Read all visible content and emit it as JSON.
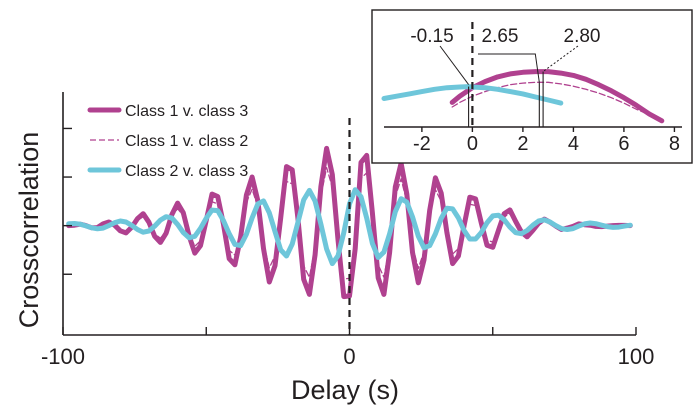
{
  "chart_data": [
    {
      "type": "line",
      "xlabel": "Delay (s)",
      "ylabel": "Crosscorrelation",
      "xlim": [
        -100,
        100
      ],
      "ylim": [
        -0.45,
        0.55
      ],
      "x_tick_labels": [
        "-100",
        "0",
        "100"
      ],
      "x_tick_values": [
        -100,
        0,
        100
      ],
      "x_minor_ticks": [
        -50,
        50
      ],
      "y_tick_values": [
        -0.2,
        0,
        0.2,
        0.4
      ],
      "zero_delay_marker": 0,
      "legend_position": "top-left",
      "series": [
        {
          "name": "Class 1 v. class 3",
          "color": "#b0418f",
          "style": "solid-thick",
          "x": [
            -98,
            -96,
            -94,
            -92,
            -90,
            -88,
            -86,
            -84,
            -82,
            -80,
            -78,
            -76,
            -74,
            -72,
            -70,
            -68,
            -66,
            -64,
            -62,
            -60,
            -58,
            -56,
            -54,
            -52,
            -50,
            -48,
            -46,
            -44,
            -42,
            -40,
            -38,
            -36,
            -34,
            -32,
            -30,
            -28,
            -26,
            -24,
            -22,
            -20,
            -18,
            -16,
            -14,
            -12,
            -10,
            -8,
            -6,
            -4,
            -2,
            0,
            2,
            4,
            6,
            8,
            10,
            12,
            14,
            16,
            18,
            20,
            22,
            24,
            26,
            28,
            30,
            32,
            34,
            36,
            38,
            40,
            42,
            44,
            46,
            48,
            50,
            52,
            54,
            56,
            58,
            60,
            62,
            64,
            66,
            68,
            70,
            72,
            74,
            76,
            78,
            80,
            82,
            84,
            86,
            88,
            90,
            92,
            94,
            96,
            98
          ],
          "y": [
            0.0,
            0.002,
            0.006,
            0.0,
            -0.009,
            -0.008,
            0.007,
            0.015,
            0.002,
            -0.021,
            -0.03,
            -0.006,
            0.029,
            0.049,
            0.014,
            -0.044,
            -0.069,
            -0.031,
            0.046,
            0.093,
            0.053,
            -0.042,
            -0.113,
            -0.082,
            0.023,
            0.13,
            0.12,
            0.007,
            -0.136,
            -0.161,
            -0.048,
            0.126,
            0.2,
            0.103,
            -0.094,
            -0.232,
            -0.165,
            0.032,
            0.243,
            0.23,
            0.031,
            -0.221,
            -0.283,
            -0.119,
            0.161,
            0.318,
            0.211,
            -0.058,
            -0.292,
            -0.289,
            -0.095,
            0.26,
            0.289,
            0.052,
            -0.215,
            -0.283,
            -0.111,
            0.159,
            0.257,
            0.131,
            -0.11,
            -0.235,
            -0.141,
            0.063,
            0.197,
            0.134,
            -0.028,
            -0.156,
            -0.125,
            0.001,
            0.117,
            0.11,
            0.011,
            -0.081,
            -0.089,
            -0.019,
            0.049,
            0.065,
            0.017,
            -0.026,
            -0.046,
            -0.019,
            0.01,
            0.027,
            0.014,
            -0.002,
            -0.016,
            -0.01,
            -0.003,
            0.007,
            0.004,
            0.002,
            -0.003,
            -0.004,
            -0.002,
            0.0,
            0.001,
            0.001,
            0.0
          ]
        },
        {
          "name": "Class 1 v. class 2",
          "color": "#b0418f",
          "style": "dashed-thin",
          "x": [
            -98,
            -96,
            -94,
            -92,
            -90,
            -88,
            -86,
            -84,
            -82,
            -80,
            -78,
            -76,
            -74,
            -72,
            -70,
            -68,
            -66,
            -64,
            -62,
            -60,
            -58,
            -56,
            -54,
            -52,
            -50,
            -48,
            -46,
            -44,
            -42,
            -40,
            -38,
            -36,
            -34,
            -32,
            -30,
            -28,
            -26,
            -24,
            -22,
            -20,
            -18,
            -16,
            -14,
            -12,
            -10,
            -8,
            -6,
            -4,
            -2,
            0,
            2,
            4,
            6,
            8,
            10,
            12,
            14,
            16,
            18,
            20,
            22,
            24,
            26,
            28,
            30,
            32,
            34,
            36,
            38,
            40,
            42,
            44,
            46,
            48,
            50,
            52,
            54,
            56,
            58,
            60,
            62,
            64,
            66,
            68,
            70,
            72,
            74,
            76,
            78,
            80,
            82,
            84,
            86,
            88,
            90,
            92,
            94,
            96,
            98
          ],
          "y": [
            0.0,
            0.002,
            0.005,
            0.0,
            -0.007,
            -0.006,
            0.005,
            0.012,
            0.002,
            -0.016,
            -0.023,
            -0.004,
            0.022,
            0.037,
            0.011,
            -0.033,
            -0.052,
            -0.023,
            0.035,
            0.07,
            0.04,
            -0.032,
            -0.085,
            -0.062,
            0.017,
            0.098,
            0.09,
            0.005,
            -0.102,
            -0.121,
            -0.036,
            0.095,
            0.15,
            0.077,
            -0.071,
            -0.174,
            -0.124,
            0.024,
            0.182,
            0.172,
            0.023,
            -0.166,
            -0.212,
            -0.089,
            0.121,
            0.239,
            0.158,
            -0.043,
            -0.219,
            -0.217,
            -0.071,
            0.195,
            0.217,
            0.039,
            -0.161,
            -0.212,
            -0.083,
            0.119,
            0.193,
            0.098,
            -0.083,
            -0.176,
            -0.106,
            0.047,
            0.148,
            0.1,
            -0.021,
            -0.117,
            -0.094,
            0.001,
            0.088,
            0.083,
            0.008,
            -0.061,
            -0.067,
            -0.014,
            0.037,
            0.049,
            0.013,
            -0.02,
            -0.034,
            -0.014,
            0.008,
            0.02,
            0.011,
            -0.002,
            -0.012,
            -0.008,
            -0.002,
            0.005,
            0.003,
            0.002,
            -0.002,
            -0.003,
            -0.002,
            0.0,
            0.001,
            0.001,
            0.0
          ]
        },
        {
          "name": "Class 2 v. class 3",
          "color": "#6ec6da",
          "style": "solid-thick",
          "x": [
            -98,
            -96,
            -94,
            -92,
            -90,
            -88,
            -86,
            -84,
            -82,
            -80,
            -78,
            -76,
            -74,
            -72,
            -70,
            -68,
            -66,
            -64,
            -62,
            -60,
            -58,
            -56,
            -54,
            -52,
            -50,
            -48,
            -46,
            -44,
            -42,
            -40,
            -38,
            -36,
            -34,
            -32,
            -30,
            -28,
            -26,
            -24,
            -22,
            -20,
            -18,
            -16,
            -14,
            -12,
            -10,
            -8,
            -6,
            -4,
            -2,
            0,
            2,
            4,
            6,
            8,
            10,
            12,
            14,
            16,
            18,
            20,
            22,
            24,
            26,
            28,
            30,
            32,
            34,
            36,
            38,
            40,
            42,
            44,
            46,
            48,
            50,
            52,
            54,
            56,
            58,
            60,
            62,
            64,
            66,
            68,
            70,
            72,
            74,
            76,
            78,
            80,
            82,
            84,
            86,
            88,
            90,
            92,
            94,
            96,
            98
          ],
          "y": [
            0.008,
            0.009,
            0.006,
            -0.001,
            -0.009,
            -0.013,
            -0.01,
            0.0,
            0.012,
            0.019,
            0.015,
            0.001,
            -0.016,
            -0.027,
            -0.022,
            -0.002,
            0.023,
            0.037,
            0.031,
            0.005,
            -0.028,
            -0.05,
            -0.044,
            -0.011,
            0.031,
            0.064,
            0.062,
            0.021,
            -0.033,
            -0.077,
            -0.082,
            -0.035,
            0.032,
            0.089,
            0.102,
            0.053,
            -0.024,
            -0.1,
            -0.125,
            -0.076,
            0.013,
            0.106,
            0.145,
            0.101,
            0.006,
            -0.096,
            -0.156,
            -0.124,
            -0.029,
            0.09,
            0.148,
            0.119,
            0.031,
            -0.073,
            -0.131,
            -0.109,
            -0.034,
            0.057,
            0.111,
            0.097,
            0.036,
            -0.043,
            -0.091,
            -0.082,
            -0.034,
            0.03,
            0.072,
            0.069,
            0.032,
            -0.02,
            -0.055,
            -0.055,
            -0.028,
            0.012,
            0.04,
            0.043,
            0.024,
            -0.006,
            -0.029,
            -0.033,
            -0.02,
            0.002,
            0.019,
            0.024,
            0.015,
            0.0,
            -0.012,
            -0.016,
            -0.012,
            -0.002,
            0.007,
            0.011,
            0.008,
            0.002,
            -0.004,
            -0.007,
            -0.006,
            -0.002,
            0.002
          ]
        }
      ]
    },
    {
      "type": "line",
      "title": "",
      "xlim": [
        -3.5,
        8.3
      ],
      "ylim": [
        0,
        1
      ],
      "x_tick_labels": [
        "-2",
        "0",
        "2",
        "4",
        "6",
        "8"
      ],
      "x_tick_values": [
        -2,
        0,
        2,
        4,
        6,
        8
      ],
      "zero_delay_marker": 0,
      "annotations": [
        {
          "text": "-0.15",
          "x": -0.15
        },
        {
          "text": "2.65",
          "x": 2.65
        },
        {
          "text": "2.80",
          "x": 2.8
        }
      ],
      "series": [
        {
          "name": "Class 1 v. class 3",
          "color": "#b0418f",
          "style": "solid-thick",
          "x": [
            -0.8,
            -0.5,
            0.0,
            0.5,
            1.0,
            1.5,
            2.0,
            2.5,
            2.8,
            3.0,
            3.5,
            4.0,
            4.5,
            5.0,
            5.5,
            6.0,
            6.5,
            7.0,
            7.5
          ],
          "y": [
            0.32,
            0.4,
            0.51,
            0.59,
            0.65,
            0.69,
            0.71,
            0.72,
            0.72,
            0.72,
            0.7,
            0.67,
            0.62,
            0.55,
            0.47,
            0.38,
            0.28,
            0.17,
            0.08
          ]
        },
        {
          "name": "Class 1 v. class 2",
          "color": "#b0418f",
          "style": "dashed-thin",
          "x": [
            -0.8,
            -0.5,
            0.0,
            0.5,
            1.0,
            1.5,
            2.0,
            2.5,
            2.65,
            3.0,
            3.5,
            4.0,
            4.5,
            5.0,
            5.5,
            6.0,
            6.5,
            7.0,
            7.5
          ],
          "y": [
            0.26,
            0.32,
            0.4,
            0.46,
            0.51,
            0.55,
            0.57,
            0.58,
            0.58,
            0.58,
            0.56,
            0.53,
            0.49,
            0.44,
            0.38,
            0.31,
            0.23,
            0.16,
            0.1
          ]
        },
        {
          "name": "Class 2 v. class 3",
          "color": "#6ec6da",
          "style": "solid-thick",
          "x": [
            -3.5,
            -3.0,
            -2.5,
            -2.0,
            -1.5,
            -1.0,
            -0.5,
            -0.15,
            0.0,
            0.5,
            1.0,
            1.5,
            2.0,
            2.5,
            3.0,
            3.5
          ],
          "y": [
            0.37,
            0.4,
            0.43,
            0.46,
            0.49,
            0.51,
            0.52,
            0.525,
            0.52,
            0.51,
            0.49,
            0.46,
            0.43,
            0.39,
            0.35,
            0.31
          ]
        }
      ]
    }
  ]
}
